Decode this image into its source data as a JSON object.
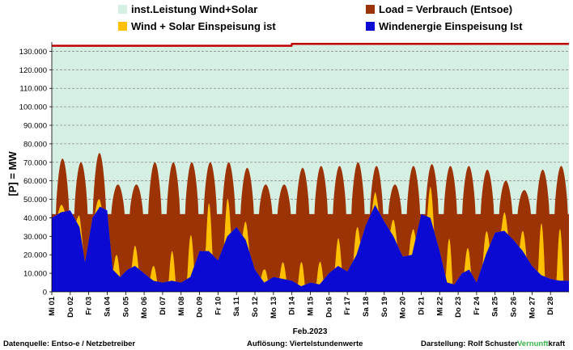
{
  "legend": [
    {
      "label": "inst.Leistung Wind+Solar",
      "color": "#d5efe2"
    },
    {
      "label": "Load =  Verbrauch (Entsoe)",
      "color": "#9c3305"
    },
    {
      "label": "Wind + Solar Einspeisung ist",
      "color": "#ffc000"
    },
    {
      "label": "Windenergie Einspeisung Ist",
      "color": "#0a0ad2"
    }
  ],
  "footer": {
    "left": "Datenquelle:  Entso-e  / Netzbetreiber",
    "center": "Auflösung: Viertelstundenwerte",
    "right_prefix": "Darstellung:  Rolf Schuster",
    "brand_green": "Vernunft",
    "brand_black": "kraft"
  },
  "colors": {
    "installed": "#d5efe2",
    "installed_line": "#c00000",
    "load": "#9c3305",
    "wind_solar": "#ffc000",
    "wind": "#0a0ad2",
    "grid": "#8c8c8c",
    "brand_green": "#3cb44b"
  },
  "chart_data": {
    "type": "area",
    "title": "",
    "xlabel": "Feb.2023",
    "ylabel": "[P] = MW",
    "ylim": [
      0,
      135000
    ],
    "y_ticks": [
      "0",
      "10.000",
      "20.000",
      "30.000",
      "40.000",
      "50.000",
      "60.000",
      "70.000",
      "80.000",
      "90.000",
      "100.000",
      "110.000",
      "120.000",
      "130.000"
    ],
    "x_ticks": [
      "Mi 01",
      "Do 02",
      "Fr 03",
      "Sa 04",
      "So 05",
      "Mo 06",
      "Di 07",
      "Mi 08",
      "Do 09",
      "Fr 10",
      "Sa 11",
      "So 12",
      "Mo 13",
      "Di 14",
      "Mi 15",
      "Do 16",
      "Fr 17",
      "Sa 18",
      "So 19",
      "Mo 20",
      "Di 21",
      "Mi 22",
      "Do 23",
      "Fr 24",
      "Sa 25",
      "So 26",
      "Mo 27",
      "Di 28"
    ],
    "grid": true,
    "legend_position": "top",
    "x_unit": "day of February 2023",
    "series": [
      {
        "name": "inst.Leistung Wind+Solar",
        "kind": "step",
        "x": [
          0,
          13,
          28
        ],
        "values": [
          133000,
          134000,
          134000
        ]
      },
      {
        "name": "Load =  Verbrauch (Entsoe)",
        "daily_peak": [
          72000,
          70000,
          75000,
          58000,
          58000,
          70000,
          70000,
          70000,
          70000,
          70000,
          67000,
          58000,
          58000,
          67000,
          68000,
          68000,
          70000,
          68000,
          58000,
          68000,
          69000,
          68000,
          68000,
          66000,
          60000,
          55000,
          66000,
          68000
        ],
        "night_min": 42000
      },
      {
        "name": "Wind + Solar Einspeisung ist",
        "solar_peak": [
          4000,
          6000,
          5000,
          10000,
          11000,
          8000,
          16000,
          22000,
          26000,
          20000,
          10000,
          7000,
          9000,
          13000,
          12000,
          15000,
          14000,
          7000,
          9000,
          12000,
          17000,
          24000,
          12000,
          12000,
          10000,
          11000,
          28000,
          28000
        ]
      },
      {
        "name": "Windenergie Einspeisung Ist",
        "x": [
          0,
          0.5,
          1.0,
          1.5,
          1.8,
          2.2,
          2.6,
          3.0,
          3.3,
          3.7,
          4.1,
          4.5,
          5.0,
          5.5,
          6.0,
          6.5,
          7.0,
          7.5,
          8.0,
          8.5,
          9.0,
          9.5,
          10.0,
          10.5,
          11.0,
          11.5,
          12.0,
          12.5,
          13.0,
          13.5,
          14.0,
          14.5,
          15.0,
          15.5,
          16.0,
          16.5,
          17.0,
          17.5,
          18.0,
          18.5,
          19.0,
          19.5,
          20.0,
          20.5,
          21.0,
          21.4,
          21.8,
          22.2,
          22.6,
          23.0,
          23.5,
          24.0,
          24.5,
          25.0,
          25.5,
          26.0,
          26.5,
          27.0,
          27.5,
          28.0
        ],
        "values": [
          40000,
          43000,
          44000,
          35000,
          16000,
          40000,
          46000,
          44000,
          12000,
          8000,
          12000,
          14000,
          10000,
          6000,
          5000,
          6000,
          5000,
          8000,
          22000,
          22000,
          17000,
          30000,
          35000,
          28000,
          12000,
          5000,
          8000,
          7000,
          6000,
          3000,
          5000,
          4000,
          10000,
          14000,
          11000,
          20000,
          36000,
          47000,
          38000,
          30000,
          19000,
          20000,
          42000,
          40000,
          22000,
          5000,
          4000,
          10000,
          12000,
          5000,
          20000,
          32000,
          33000,
          28000,
          22000,
          14000,
          9000,
          7000,
          6000,
          6000
        ]
      }
    ]
  }
}
